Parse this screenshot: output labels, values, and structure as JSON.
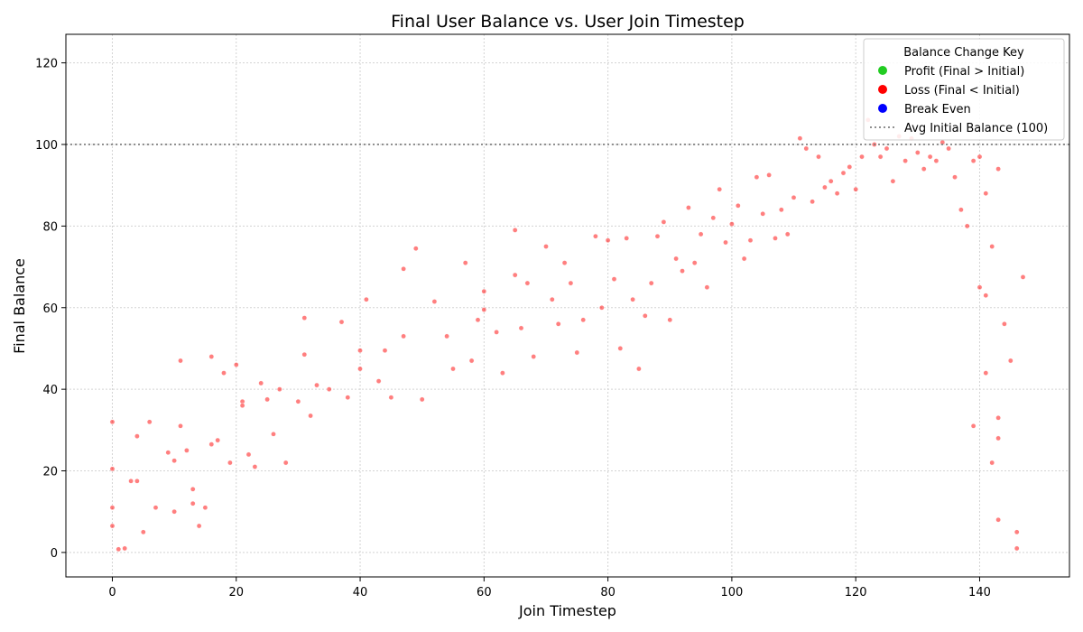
{
  "chart_data": {
    "type": "scatter",
    "title": "Final User Balance vs. User Join Timestep",
    "xlabel": "Join Timestep",
    "ylabel": "Final Balance",
    "xlim": [
      -7.5,
      154.5
    ],
    "ylim": [
      -6,
      127
    ],
    "xticks": [
      0,
      20,
      40,
      60,
      80,
      100,
      120,
      140
    ],
    "yticks": [
      0,
      20,
      40,
      60,
      80,
      100,
      120
    ],
    "grid": true,
    "legend": {
      "title": "Balance Change Key",
      "placement": "top-right",
      "entries": [
        {
          "label": "Profit (Final > Initial)",
          "color": "#22cc22",
          "marker": "circle"
        },
        {
          "label": "Loss (Final < Initial)",
          "color": "#ff0000",
          "marker": "circle"
        },
        {
          "label": "Break Even",
          "color": "#0000ff",
          "marker": "circle"
        },
        {
          "label": "Avg Initial Balance (100)",
          "color": "#808080",
          "marker": "dotted-line"
        }
      ]
    },
    "reference_line": {
      "y": 100,
      "style": "dotted",
      "color": "#808080"
    },
    "series": [
      {
        "name": "Loss (Final < Initial)",
        "color": "#ff0000",
        "points": [
          [
            0,
            32
          ],
          [
            0,
            20.5
          ],
          [
            0,
            11
          ],
          [
            0,
            6.5
          ],
          [
            1,
            0.8
          ],
          [
            2,
            1
          ],
          [
            3,
            17.5
          ],
          [
            4,
            28.5
          ],
          [
            4,
            17.5
          ],
          [
            5,
            5
          ],
          [
            6,
            32
          ],
          [
            7,
            11
          ],
          [
            9,
            24.5
          ],
          [
            10,
            22.5
          ],
          [
            10,
            10
          ],
          [
            11,
            47
          ],
          [
            11,
            31
          ],
          [
            12,
            25
          ],
          [
            13,
            15.5
          ],
          [
            13,
            12
          ],
          [
            14,
            6.5
          ],
          [
            15,
            11
          ],
          [
            16,
            48
          ],
          [
            16,
            26.5
          ],
          [
            17,
            27.5
          ],
          [
            18,
            44
          ],
          [
            19,
            22
          ],
          [
            20,
            46
          ],
          [
            21,
            37
          ],
          [
            21,
            36
          ],
          [
            22,
            24
          ],
          [
            23,
            21
          ],
          [
            24,
            41.5
          ],
          [
            25,
            37.5
          ],
          [
            26,
            29
          ],
          [
            27,
            40
          ],
          [
            28,
            22
          ],
          [
            30,
            37
          ],
          [
            31,
            57.5
          ],
          [
            31,
            48.5
          ],
          [
            32,
            33.5
          ],
          [
            33,
            41
          ],
          [
            35,
            40
          ],
          [
            37,
            56.5
          ],
          [
            38,
            38
          ],
          [
            40,
            49.5
          ],
          [
            40,
            45
          ],
          [
            41,
            62
          ],
          [
            43,
            42
          ],
          [
            44,
            49.5
          ],
          [
            45,
            38
          ],
          [
            47,
            69.5
          ],
          [
            47,
            53
          ],
          [
            49,
            74.5
          ],
          [
            50,
            37.5
          ],
          [
            52,
            61.5
          ],
          [
            54,
            53
          ],
          [
            55,
            45
          ],
          [
            57,
            71
          ],
          [
            58,
            47
          ],
          [
            59,
            57
          ],
          [
            60,
            64
          ],
          [
            60,
            59.5
          ],
          [
            62,
            54
          ],
          [
            63,
            44
          ],
          [
            65,
            79
          ],
          [
            65,
            68
          ],
          [
            66,
            55
          ],
          [
            67,
            66
          ],
          [
            68,
            48
          ],
          [
            70,
            75
          ],
          [
            71,
            62
          ],
          [
            72,
            56
          ],
          [
            73,
            71
          ],
          [
            74,
            66
          ],
          [
            75,
            49
          ],
          [
            76,
            57
          ],
          [
            78,
            77.5
          ],
          [
            79,
            60
          ],
          [
            80,
            76.5
          ],
          [
            81,
            67
          ],
          [
            82,
            50
          ],
          [
            83,
            77
          ],
          [
            84,
            62
          ],
          [
            85,
            45
          ],
          [
            86,
            58
          ],
          [
            87,
            66
          ],
          [
            88,
            77.5
          ],
          [
            89,
            81
          ],
          [
            90,
            57
          ],
          [
            91,
            72
          ],
          [
            92,
            69
          ],
          [
            93,
            84.5
          ],
          [
            94,
            71
          ],
          [
            95,
            78
          ],
          [
            96,
            65
          ],
          [
            97,
            82
          ],
          [
            98,
            89
          ],
          [
            99,
            76
          ],
          [
            100,
            80.5
          ],
          [
            101,
            85
          ],
          [
            102,
            72
          ],
          [
            103,
            76.5
          ],
          [
            104,
            92
          ],
          [
            105,
            83
          ],
          [
            106,
            92.5
          ],
          [
            107,
            77
          ],
          [
            108,
            84
          ],
          [
            109,
            78
          ],
          [
            110,
            87
          ],
          [
            111,
            101.5
          ],
          [
            112,
            99
          ],
          [
            113,
            86
          ],
          [
            114,
            97
          ],
          [
            115,
            89.5
          ],
          [
            116,
            91
          ],
          [
            117,
            88
          ],
          [
            118,
            93
          ],
          [
            119,
            94.5
          ],
          [
            120,
            89
          ],
          [
            121,
            97
          ],
          [
            122,
            106
          ],
          [
            123,
            100
          ],
          [
            124,
            97
          ],
          [
            125,
            99
          ],
          [
            126,
            91
          ],
          [
            127,
            102
          ],
          [
            128,
            96
          ],
          [
            129,
            101.5
          ],
          [
            130,
            98
          ],
          [
            131,
            94
          ],
          [
            132,
            97
          ],
          [
            133,
            96
          ],
          [
            134,
            100.5
          ],
          [
            135,
            99
          ],
          [
            136,
            92
          ],
          [
            137,
            84
          ],
          [
            138,
            80
          ],
          [
            139,
            96
          ],
          [
            140,
            97
          ],
          [
            141,
            88
          ],
          [
            142,
            75
          ],
          [
            143,
            94
          ],
          [
            144,
            56
          ],
          [
            145,
            47
          ],
          [
            143,
            33
          ],
          [
            143,
            28
          ],
          [
            147,
            67.5
          ],
          [
            146,
            5
          ],
          [
            146,
            1
          ],
          [
            140,
            65
          ],
          [
            141,
            63
          ],
          [
            142,
            22
          ],
          [
            143,
            8
          ],
          [
            139,
            31
          ],
          [
            141,
            44
          ]
        ]
      }
    ]
  }
}
